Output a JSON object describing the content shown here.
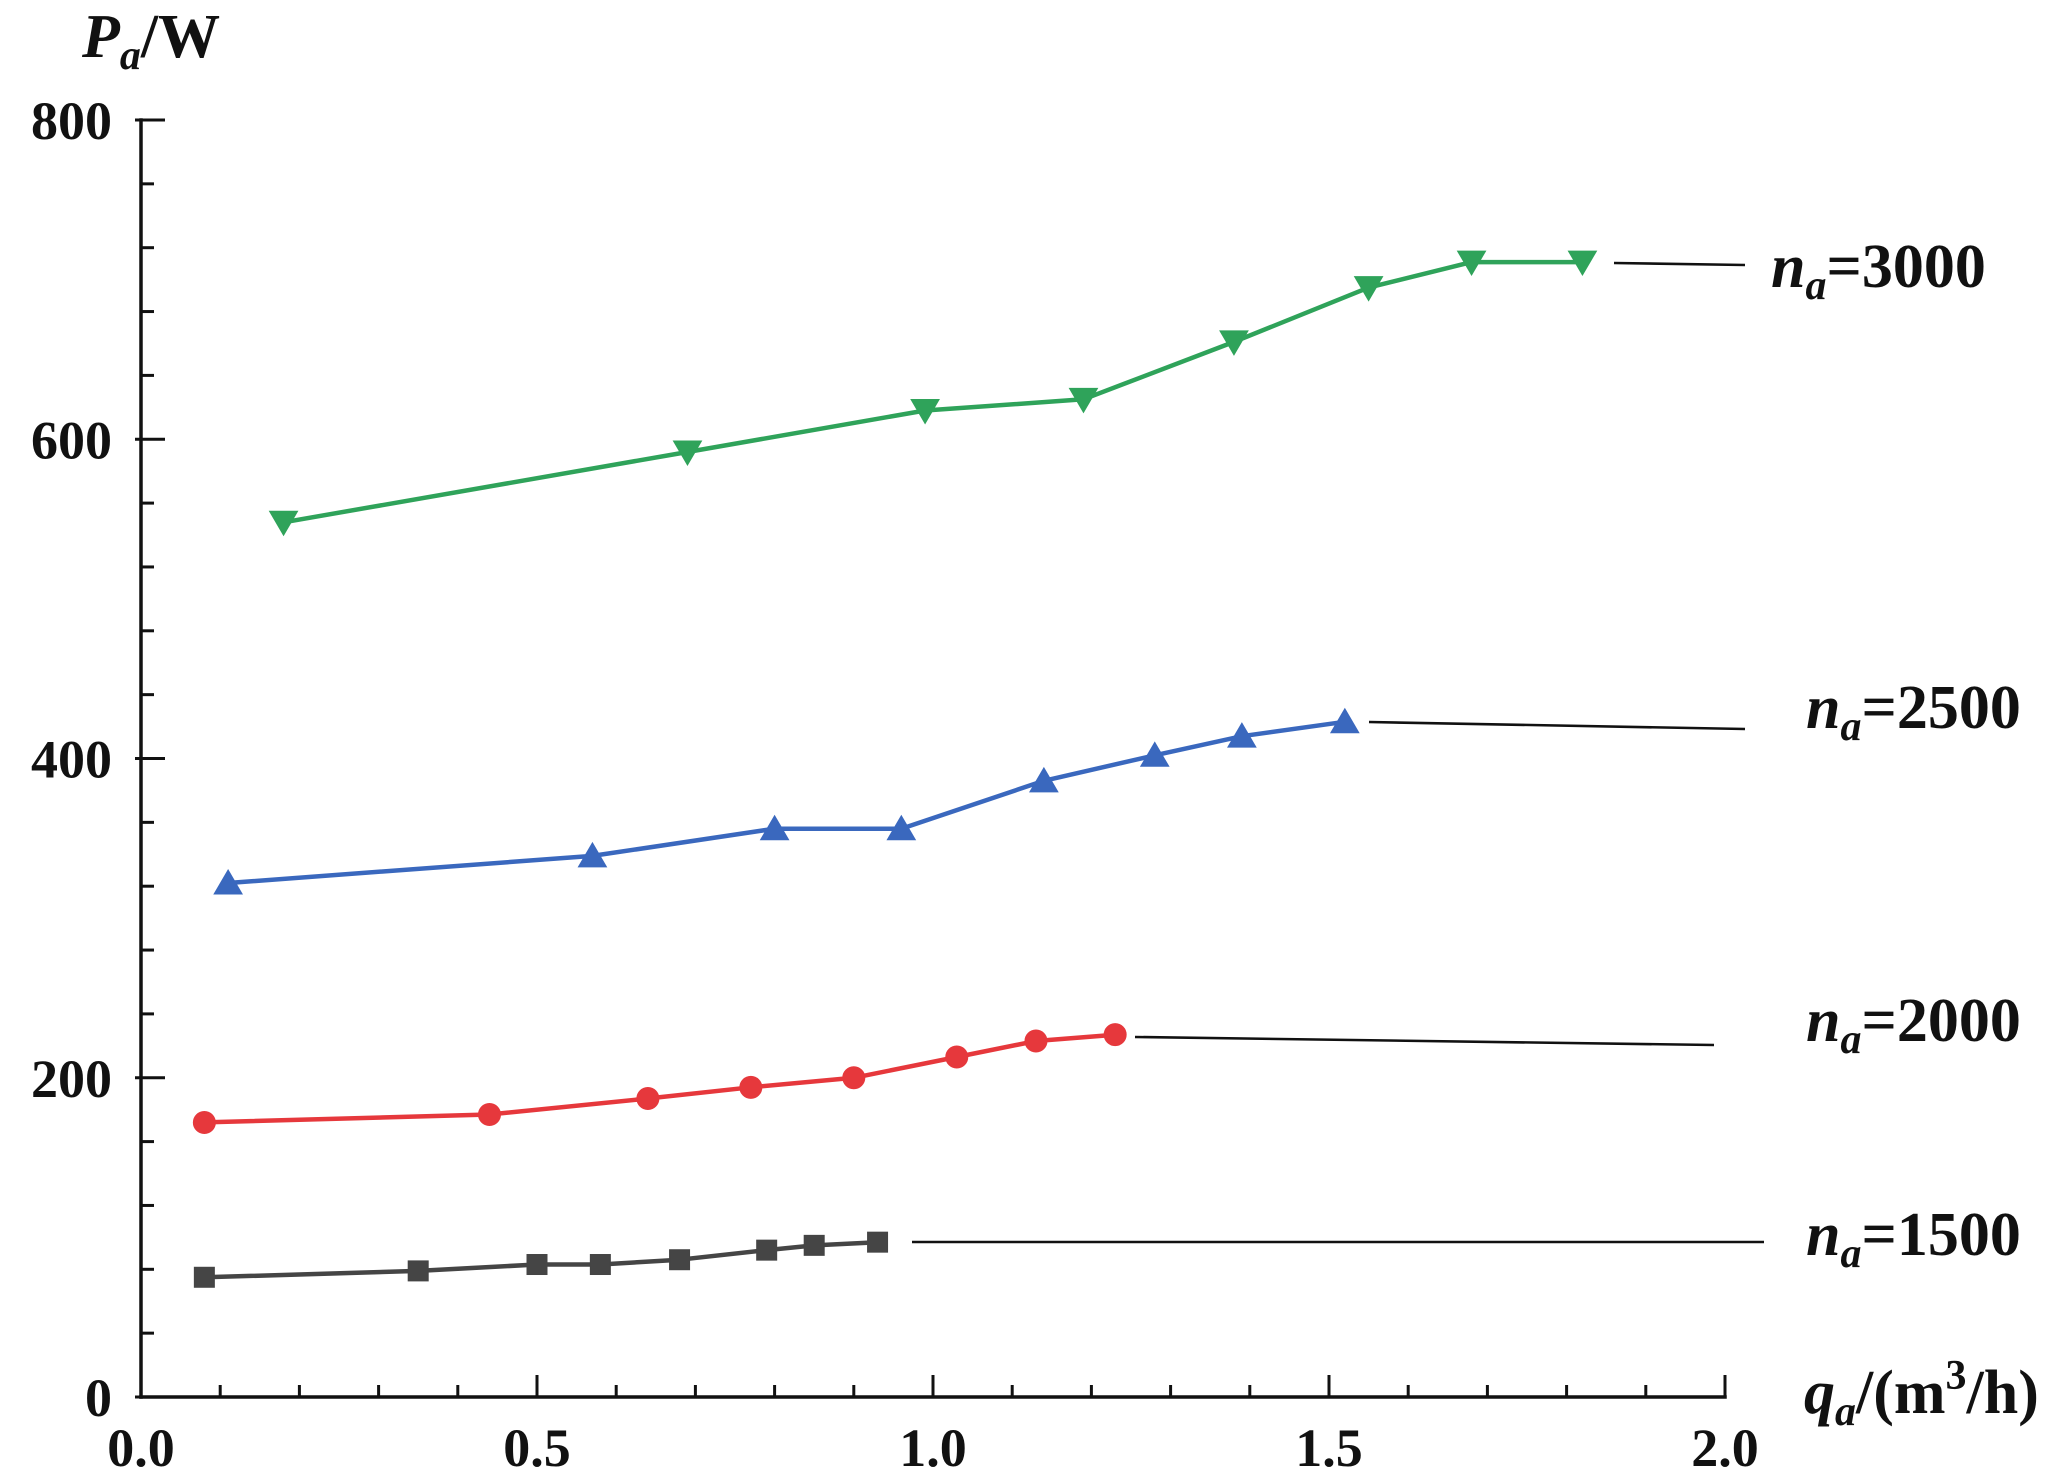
{
  "chart_data": {
    "type": "line",
    "grid": false,
    "x_axis": {
      "label": {
        "var": "q",
        "sub": "a",
        "unit_open": "/(m",
        "sup": "3",
        "unit_close": "/h)"
      },
      "range": [
        0,
        2.0
      ],
      "ticks": [
        0,
        0.5,
        1.0,
        1.5,
        2.0
      ],
      "tick_labels": [
        "0.0",
        "0.5",
        "1.0",
        "1.5",
        "2.0"
      ],
      "minor_tick_interval": 0.1
    },
    "y_axis": {
      "label": {
        "var": "P",
        "sub": "a",
        "unit": "/W"
      },
      "range": [
        0,
        800
      ],
      "ticks": [
        0,
        200,
        400,
        600,
        800
      ],
      "tick_labels": [
        "0",
        "200",
        "400",
        "600",
        "800"
      ],
      "minor_tick_interval": 40
    },
    "series": [
      {
        "label": {
          "var": "n",
          "sub": "a",
          "value": "=1500"
        },
        "color": "#454545",
        "marker": "square",
        "x": [
          0.08,
          0.35,
          0.5,
          0.58,
          0.68,
          0.79,
          0.85,
          0.93
        ],
        "y": [
          75,
          79,
          83,
          83,
          86,
          92,
          95,
          97
        ]
      },
      {
        "label": {
          "var": "n",
          "sub": "a",
          "value": "=2000"
        },
        "color": "#E6383C",
        "marker": "circle",
        "x": [
          0.08,
          0.44,
          0.64,
          0.77,
          0.9,
          1.03,
          1.13,
          1.23
        ],
        "y": [
          172,
          177,
          187,
          194,
          200,
          213,
          223,
          227
        ]
      },
      {
        "label": {
          "var": "n",
          "sub": "a",
          "value": "=2500"
        },
        "color": "#3A68BE",
        "marker": "triangle-up",
        "x": [
          0.11,
          0.57,
          0.8,
          0.96,
          1.14,
          1.28,
          1.39,
          1.52
        ],
        "y": [
          322,
          339,
          356,
          356,
          386,
          402,
          414,
          423
        ]
      },
      {
        "label": {
          "var": "n",
          "sub": "a",
          "value": "=3000"
        },
        "color": "#2FA35A",
        "marker": "triangle-down",
        "x": [
          0.18,
          0.69,
          0.99,
          1.19,
          1.38,
          1.55,
          1.68,
          1.82
        ],
        "y": [
          548,
          592,
          618,
          625,
          661,
          695,
          711,
          711
        ]
      }
    ]
  }
}
